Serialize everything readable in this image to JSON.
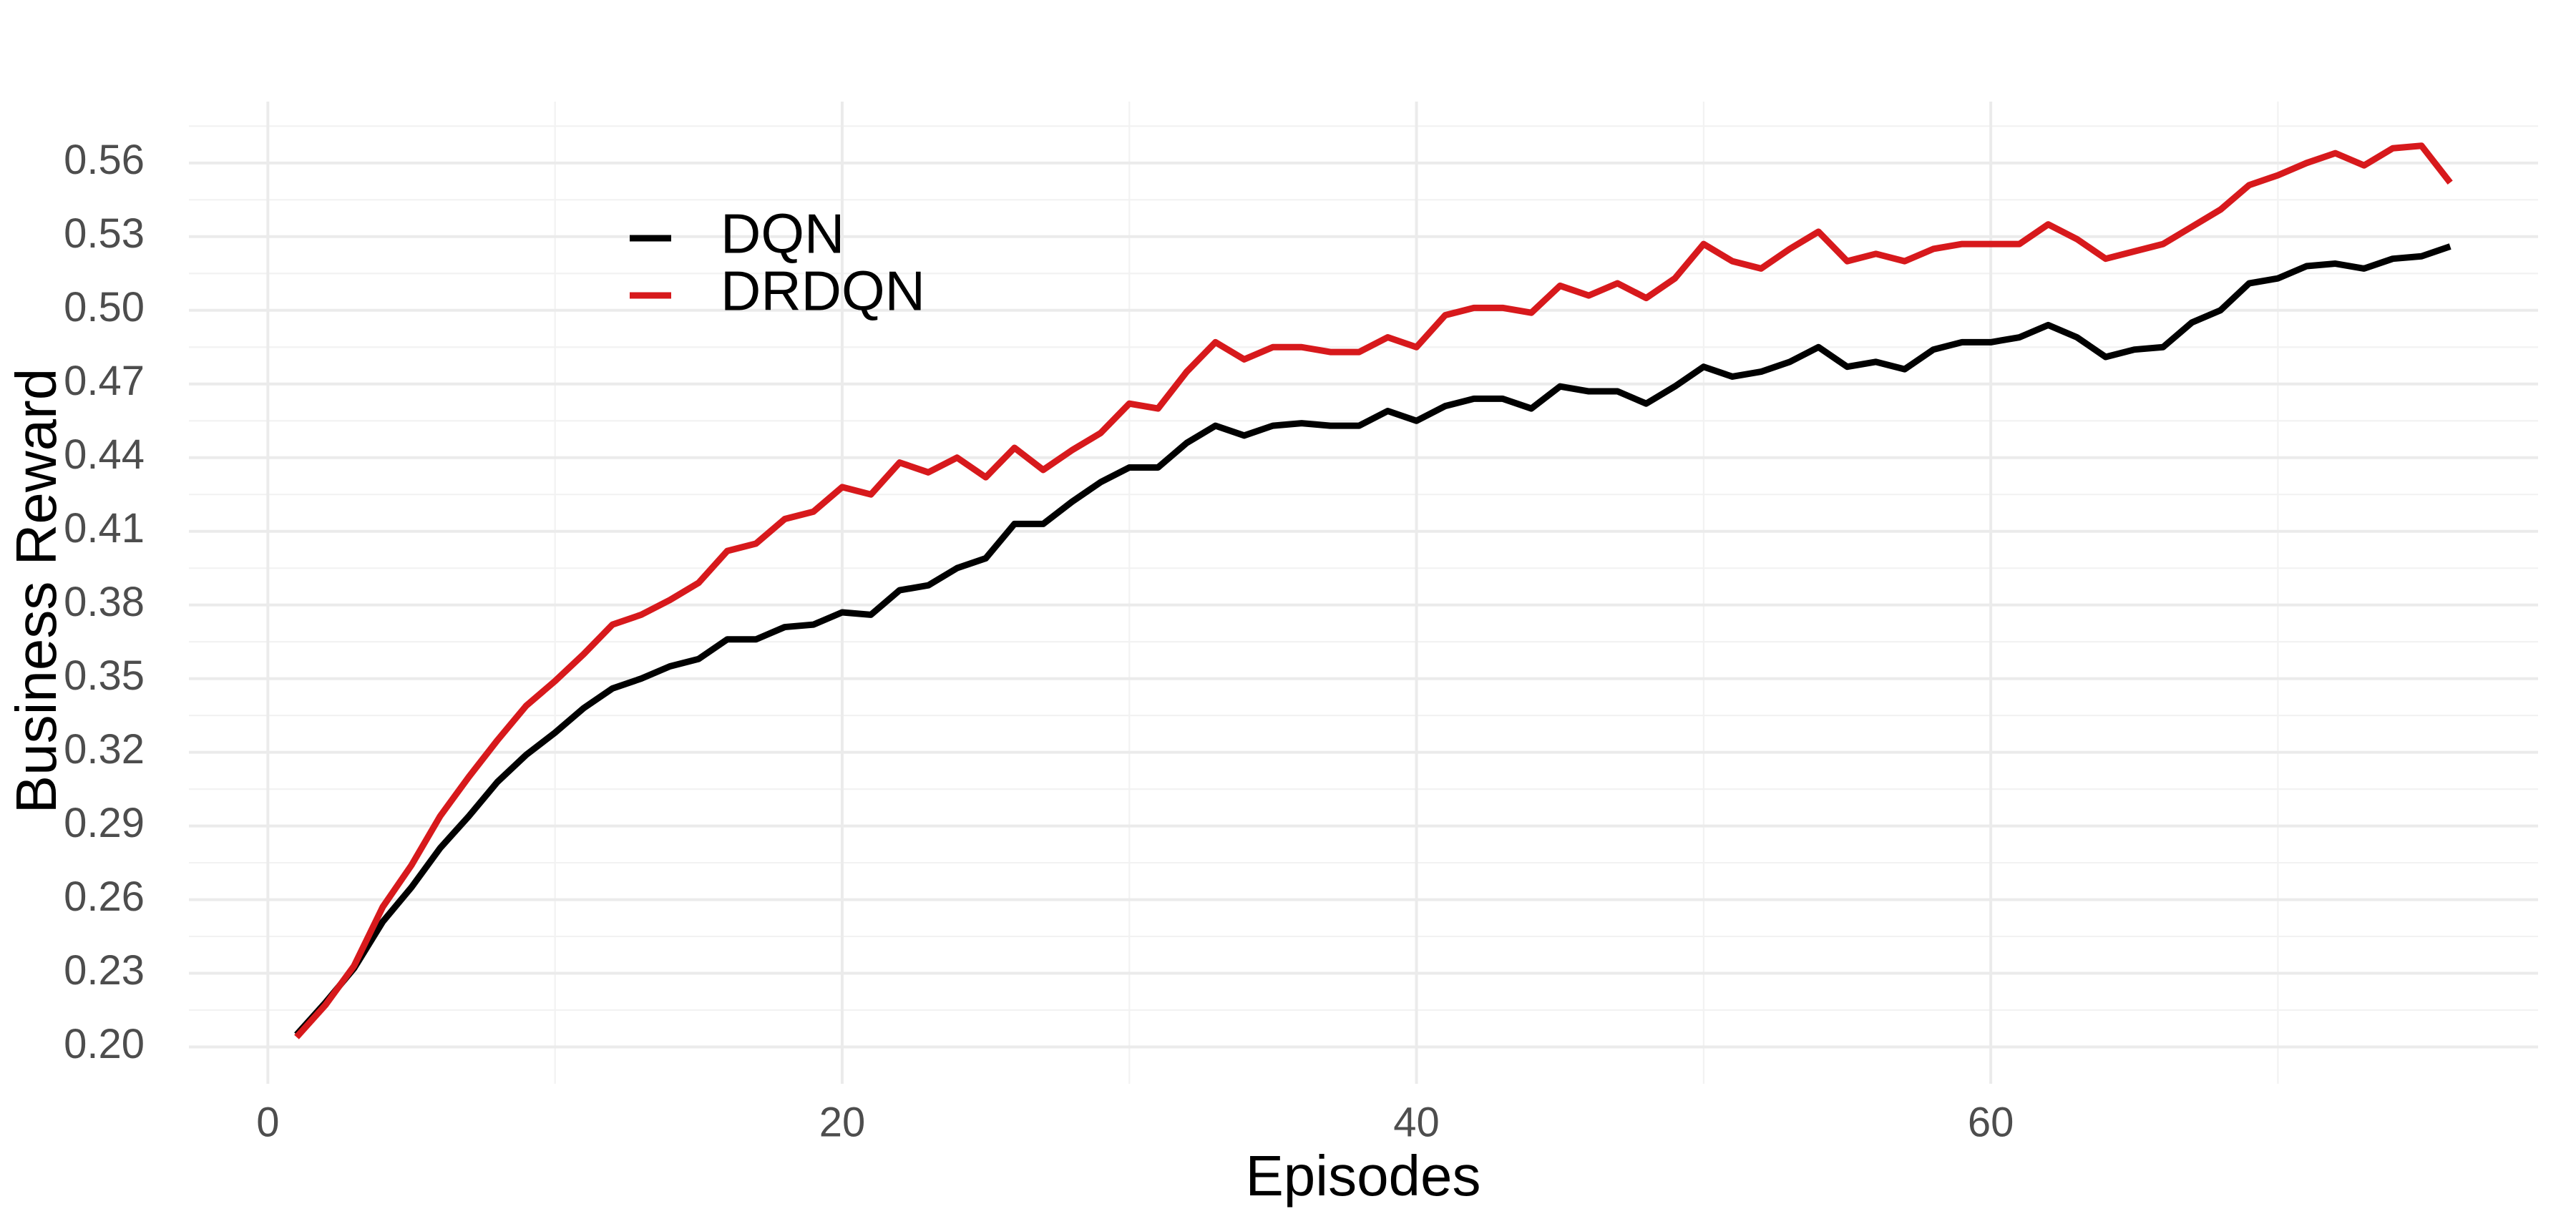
{
  "chart_data": {
    "type": "line",
    "x_label": "Episodes",
    "y_label": "Business Reward",
    "x": [
      1,
      2,
      3,
      4,
      5,
      6,
      7,
      8,
      9,
      10,
      11,
      12,
      13,
      14,
      15,
      16,
      17,
      18,
      19,
      20,
      21,
      22,
      23,
      24,
      25,
      26,
      27,
      28,
      29,
      30,
      31,
      32,
      33,
      34,
      35,
      36,
      37,
      38,
      39,
      40,
      41,
      42,
      43,
      44,
      45,
      46,
      47,
      48,
      49,
      50,
      51,
      52,
      53,
      54,
      55,
      56,
      57,
      58,
      59,
      60,
      61,
      62,
      63,
      64,
      65,
      66,
      67,
      68,
      69,
      70,
      71,
      72,
      73,
      74,
      75,
      76
    ],
    "series": [
      {
        "name": "DQN",
        "color": "#000000",
        "values": [
          0.205,
          0.218,
          0.232,
          0.251,
          0.265,
          0.281,
          0.294,
          0.308,
          0.319,
          0.328,
          0.338,
          0.346,
          0.35,
          0.355,
          0.358,
          0.366,
          0.366,
          0.371,
          0.372,
          0.377,
          0.376,
          0.386,
          0.388,
          0.395,
          0.399,
          0.413,
          0.413,
          0.422,
          0.43,
          0.436,
          0.436,
          0.446,
          0.453,
          0.449,
          0.453,
          0.454,
          0.453,
          0.453,
          0.459,
          0.455,
          0.461,
          0.464,
          0.464,
          0.46,
          0.469,
          0.467,
          0.467,
          0.462,
          0.469,
          0.477,
          0.473,
          0.475,
          0.479,
          0.485,
          0.477,
          0.479,
          0.476,
          0.484,
          0.487,
          0.487,
          0.489,
          0.494,
          0.489,
          0.481,
          0.484,
          0.485,
          0.495,
          0.5,
          0.511,
          0.513,
          0.518,
          0.519,
          0.517,
          0.521,
          0.522,
          0.526
        ]
      },
      {
        "name": "DRDQN",
        "color": "#d7191c",
        "values": [
          0.204,
          0.217,
          0.233,
          0.257,
          0.274,
          0.294,
          0.31,
          0.325,
          0.339,
          0.349,
          0.36,
          0.372,
          0.376,
          0.382,
          0.389,
          0.402,
          0.405,
          0.415,
          0.418,
          0.428,
          0.425,
          0.438,
          0.434,
          0.44,
          0.432,
          0.444,
          0.435,
          0.443,
          0.45,
          0.462,
          0.46,
          0.475,
          0.487,
          0.48,
          0.485,
          0.485,
          0.483,
          0.483,
          0.489,
          0.485,
          0.498,
          0.501,
          0.501,
          0.499,
          0.51,
          0.506,
          0.511,
          0.505,
          0.513,
          0.527,
          0.52,
          0.517,
          0.525,
          0.532,
          0.52,
          0.523,
          0.52,
          0.525,
          0.527,
          0.527,
          0.527,
          0.535,
          0.529,
          0.521,
          0.524,
          0.527,
          0.534,
          0.541,
          0.551,
          0.555,
          0.56,
          0.564,
          0.559,
          0.566,
          0.567,
          0.552
        ]
      }
    ],
    "xlim": [
      -2.75,
      79.06
    ],
    "xticks": [
      0,
      20,
      40,
      60
    ],
    "ylim": [
      0.185,
      0.585
    ],
    "yticks": [
      {
        "value": 0.2,
        "label": "0.20"
      },
      0.23,
      0.26,
      0.29,
      0.32,
      0.35,
      0.38,
      0.41,
      0.44,
      0.47,
      {
        "value": 0.5,
        "label": "0.50"
      },
      0.53,
      0.56
    ],
    "grid": true,
    "legend_position": "top-left"
  }
}
